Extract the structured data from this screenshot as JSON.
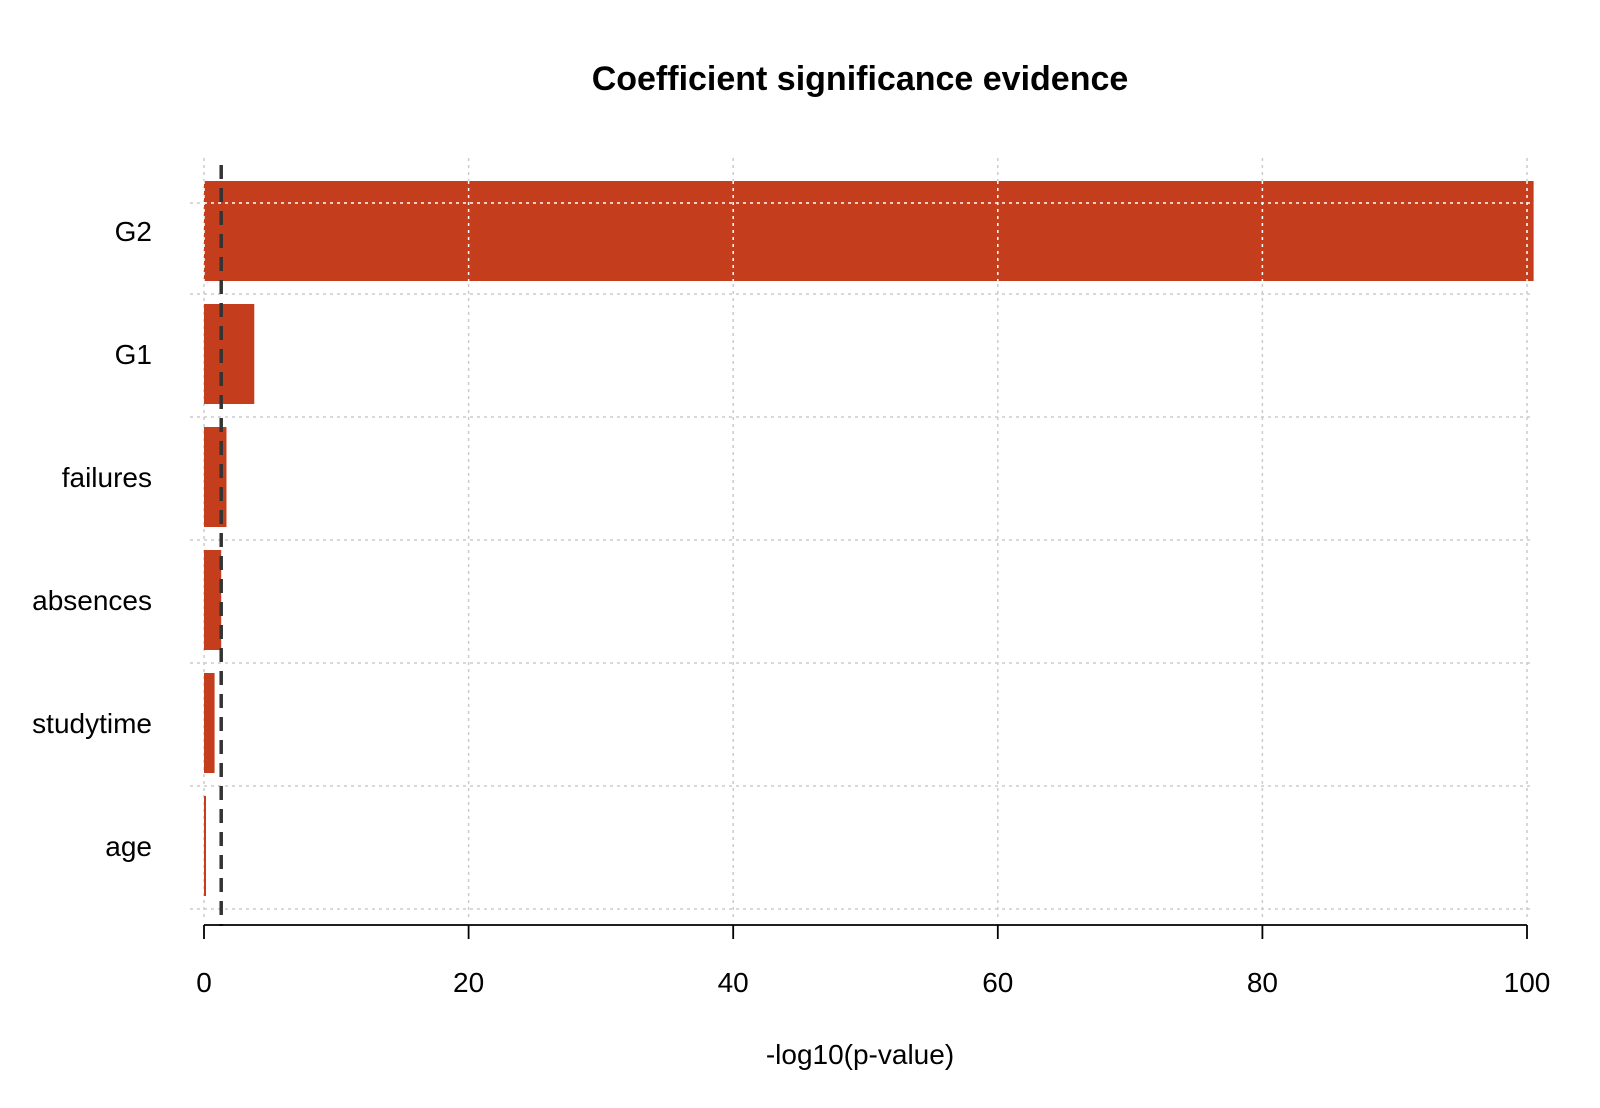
{
  "chart_data": {
    "type": "bar",
    "orientation": "horizontal",
    "title": "Coefficient significance evidence",
    "xlabel": "-log10(p-value)",
    "ylabel": "",
    "categories": [
      "G2",
      "G1",
      "failures",
      "absences",
      "studytime",
      "age"
    ],
    "values": [
      100.5,
      3.8,
      1.7,
      1.3,
      0.8,
      0.15
    ],
    "xlim": [
      0,
      100
    ],
    "xticks": [
      "0",
      "20",
      "40",
      "60",
      "80",
      "100"
    ],
    "reference_line": {
      "x": 1.3,
      "style": "dashed"
    },
    "grid": true,
    "bar_color": "#c43e1e",
    "legend": "none"
  }
}
